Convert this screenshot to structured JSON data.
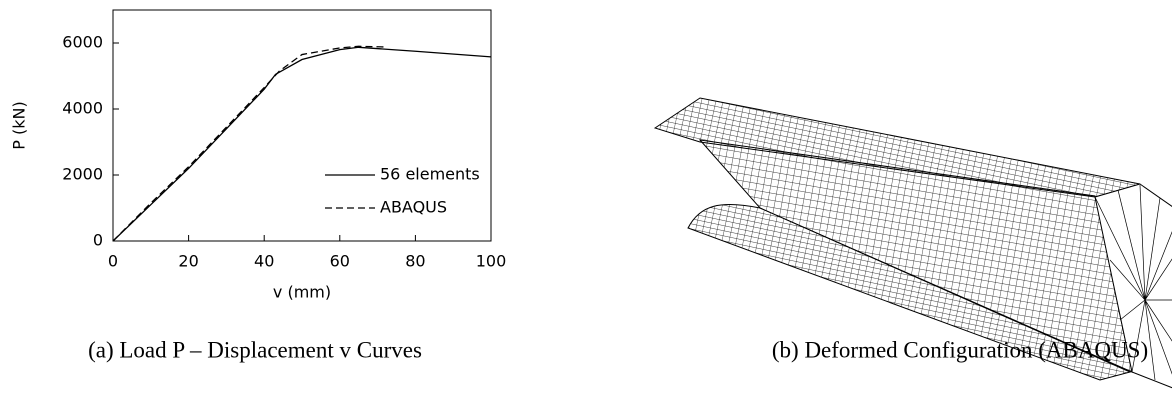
{
  "chart_data": {
    "type": "line",
    "xlabel": "v (mm)",
    "ylabel": "P (kN)",
    "xlim": [
      0,
      100
    ],
    "xticks": [
      0,
      20,
      40,
      60,
      80,
      100
    ],
    "ylim": [
      0,
      7000
    ],
    "yticks": [
      0,
      2000,
      4000,
      6000
    ],
    "legend": "lower right",
    "series": [
      {
        "name": "56 elements",
        "color": "#000000",
        "dash": "solid",
        "x": [
          0,
          10,
          20,
          30,
          40,
          43,
          50,
          60,
          65,
          80,
          100
        ],
        "values": [
          0,
          1100,
          2200,
          3400,
          4600,
          5050,
          5500,
          5800,
          5870,
          5750,
          5580
        ]
      },
      {
        "name": "ABAQUS",
        "color": "#000000",
        "dash": "dashed",
        "x": [
          0,
          10,
          20,
          30,
          40,
          44,
          50,
          60,
          65,
          72
        ],
        "values": [
          0,
          1150,
          2250,
          3450,
          4650,
          5150,
          5650,
          5850,
          5900,
          5880
        ]
      }
    ]
  },
  "captions": [
    "(a) Load P – Displacement v Curves",
    "(b) Deformed Configuration (ABAQUS)"
  ]
}
